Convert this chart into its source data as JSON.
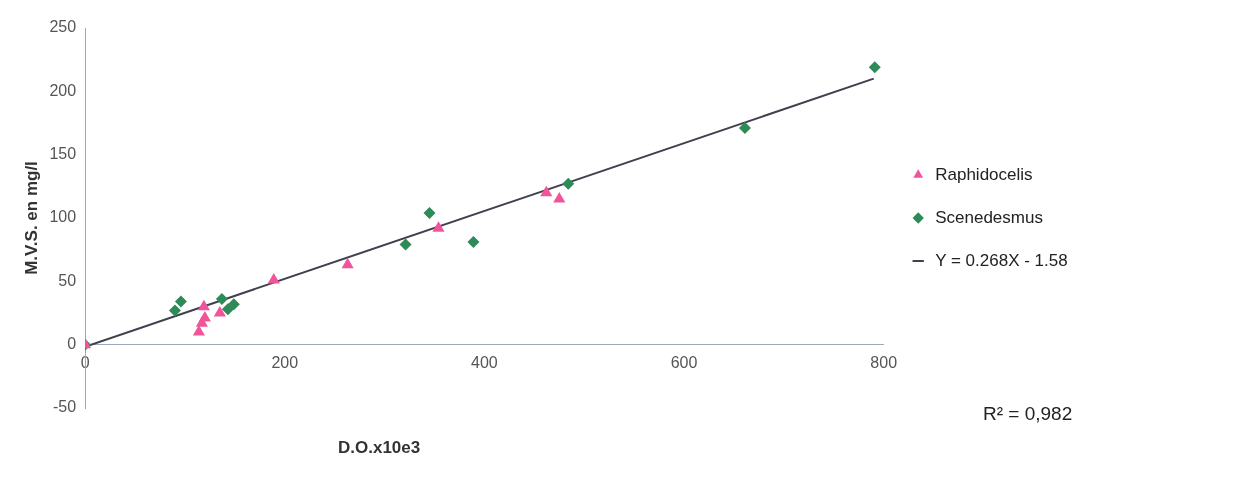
{
  "chart_data": {
    "type": "scatter",
    "xlabel": "D.O.x10e3",
    "ylabel": "M.V.S. en mg/l",
    "xlim": [
      0,
      800
    ],
    "xticks": [
      0,
      200,
      400,
      600,
      800
    ],
    "ylim": [
      -50,
      250
    ],
    "yticks": [
      -50,
      0,
      50,
      100,
      150,
      200,
      250
    ],
    "grid": false,
    "legend": "right",
    "series": [
      {
        "name": "Raphidocelis",
        "color": "#f0549a",
        "marker": "triangle",
        "x": [
          0,
          114,
          117,
          120,
          119,
          135,
          189,
          263,
          354,
          462,
          475
        ],
        "values": [
          0,
          10,
          17,
          21,
          30,
          25,
          51,
          63,
          92,
          120,
          115
        ]
      },
      {
        "name": "Scenedesmus",
        "color": "#2e8b57",
        "marker": "diamond",
        "x": [
          0,
          90,
          96,
          137,
          143,
          149,
          321,
          345,
          389,
          484,
          661,
          791
        ],
        "values": [
          0,
          27,
          34,
          36,
          28,
          32,
          79,
          104,
          81,
          127,
          171,
          219
        ]
      },
      {
        "name": "Y = 0.268X - 1.58",
        "type": "line",
        "color": "#404050",
        "marker": "none",
        "line_style": "solid",
        "x": [
          0,
          790
        ],
        "values": [
          -1.6,
          210
        ]
      }
    ],
    "annotations": [
      "R² = 0,982"
    ]
  }
}
